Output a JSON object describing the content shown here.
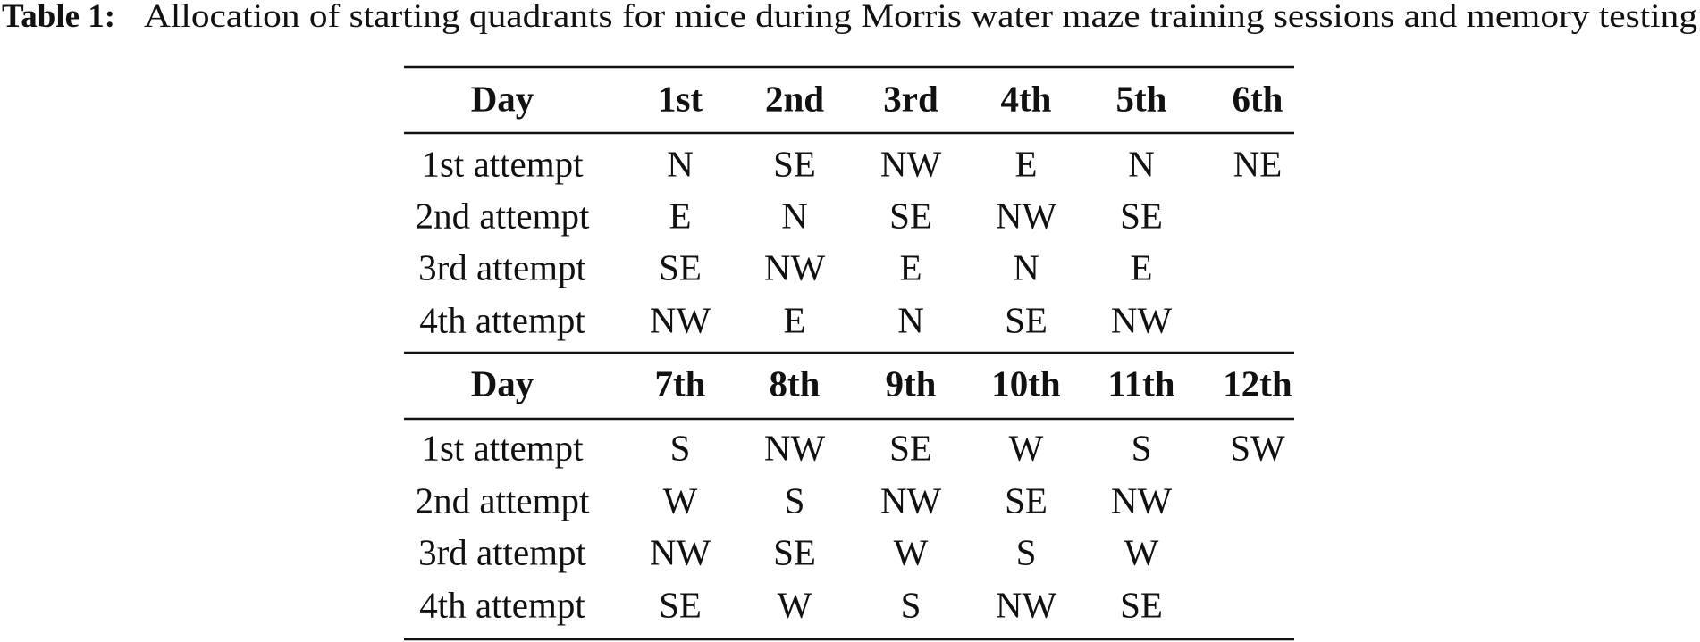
{
  "title": {
    "label": "Table 1:",
    "text": "Allocation of starting quadrants for mice during Morris water maze training sessions and memory testing"
  },
  "tables": [
    {
      "header": [
        "Day",
        "1st",
        "2nd",
        "3rd",
        "4th",
        "5th",
        "6th"
      ],
      "rows": [
        [
          "1st attempt",
          "N",
          "SE",
          "NW",
          "E",
          "N",
          "NE"
        ],
        [
          "2nd attempt",
          "E",
          "N",
          "SE",
          "NW",
          "SE"
        ],
        [
          "3rd attempt",
          "SE",
          "NW",
          "E",
          "N",
          "E"
        ],
        [
          "4th attempt",
          "NW",
          "E",
          "N",
          "SE",
          "NW"
        ]
      ]
    },
    {
      "header": [
        "Day",
        "7th",
        "8th",
        "9th",
        "10th",
        "11th",
        "12th"
      ],
      "rows": [
        [
          "1st attempt",
          "S",
          "NW",
          "SE",
          "W",
          "S",
          "SW"
        ],
        [
          "2nd attempt",
          "W",
          "S",
          "NW",
          "SE",
          "NW"
        ],
        [
          "3rd attempt",
          "NW",
          "SE",
          "W",
          "S",
          "W"
        ],
        [
          "4th attempt",
          "SE",
          "W",
          "S",
          "NW",
          "SE"
        ]
      ]
    }
  ]
}
